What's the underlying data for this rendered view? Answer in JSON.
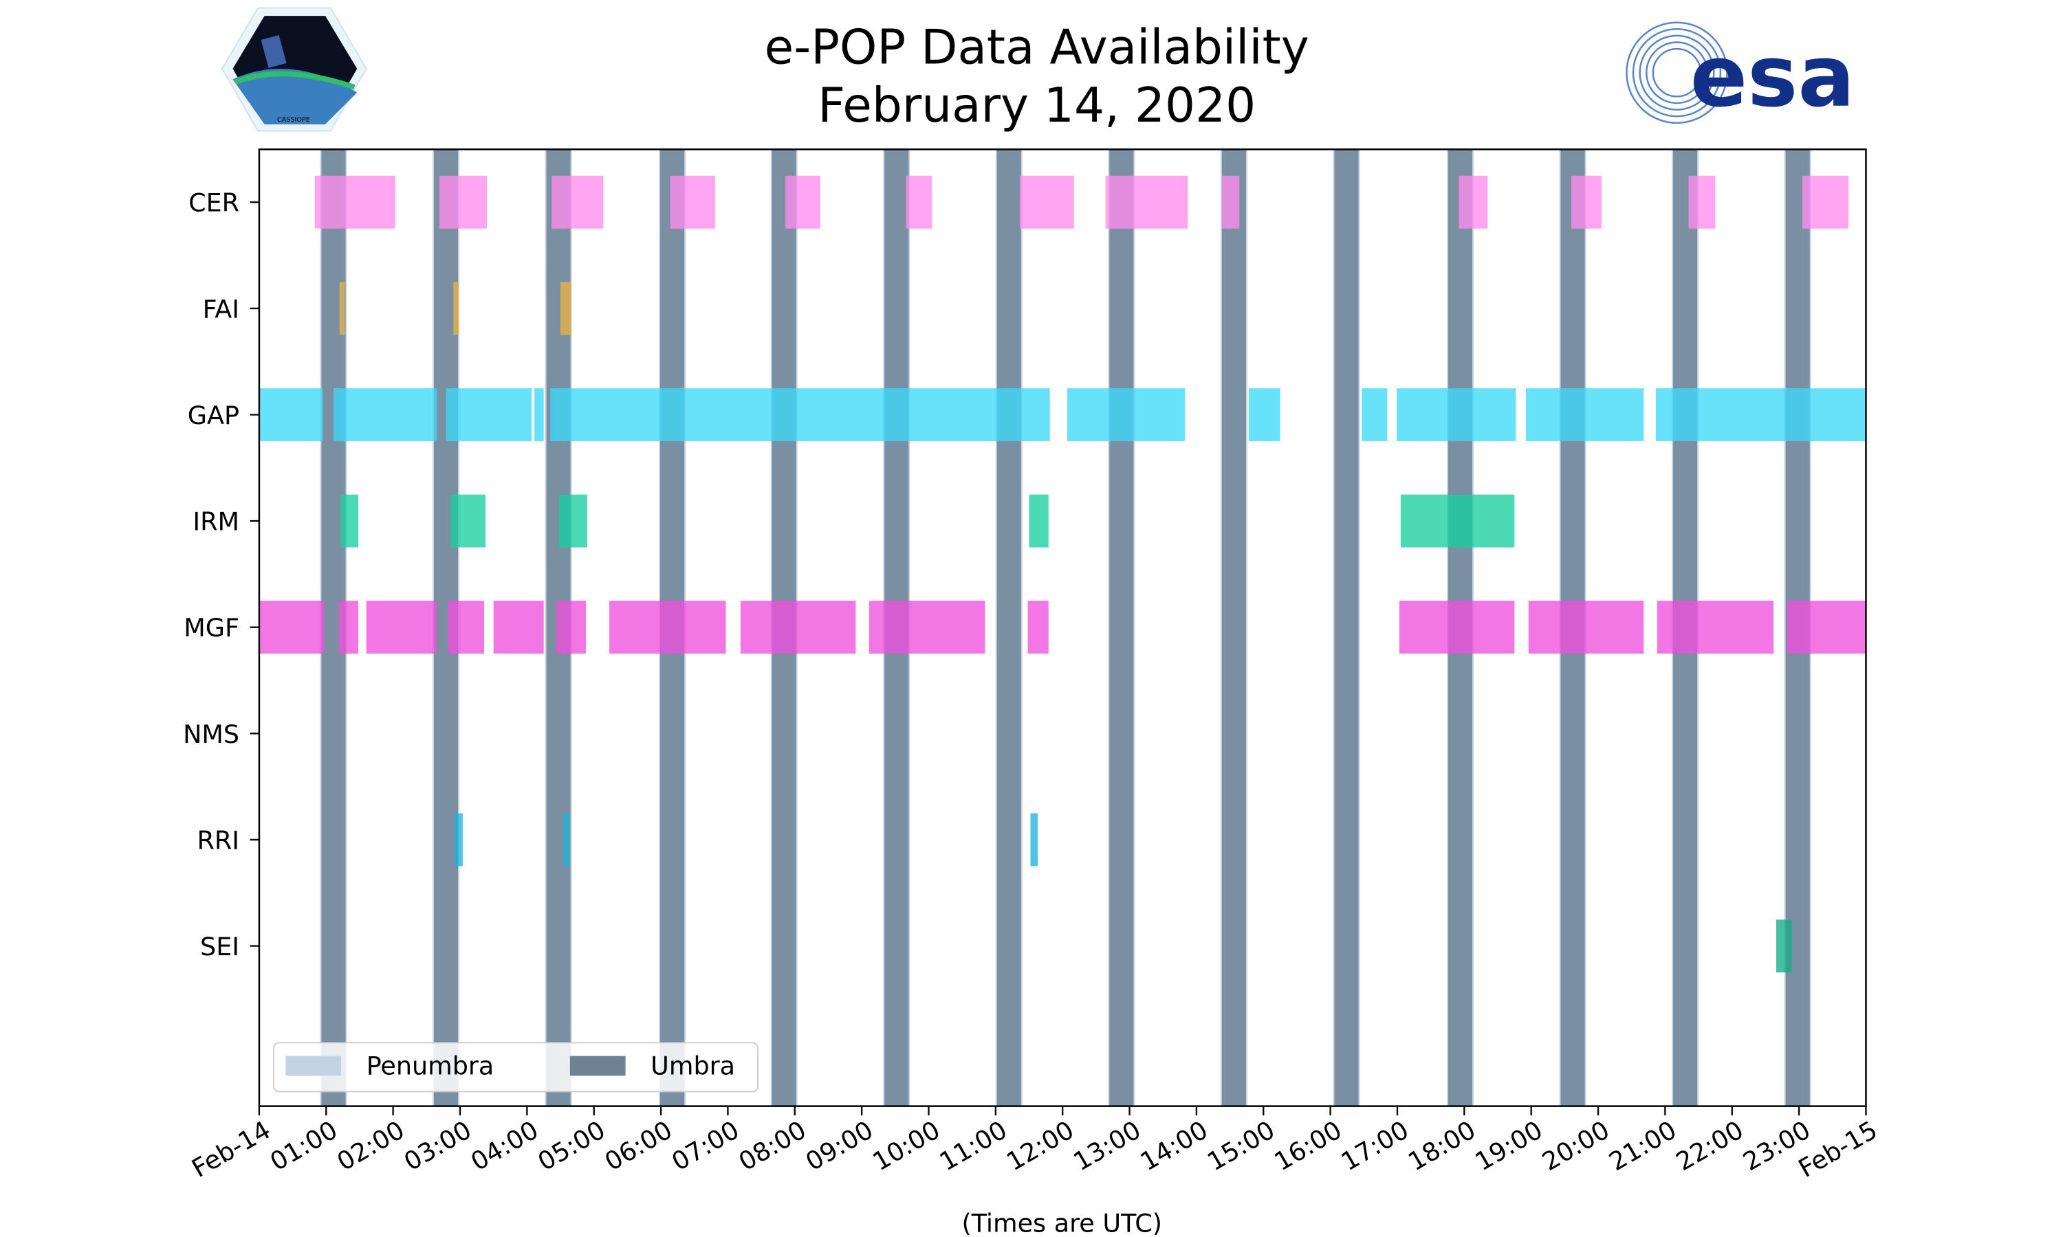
{
  "chart_data": {
    "type": "timeline",
    "title": "e-POP Data Availability",
    "subtitle": "February 14, 2020",
    "xlabel": "(Times are UTC)",
    "xlim_hours": [
      0,
      24
    ],
    "x_tick_labels": [
      "Feb-14",
      "01:00",
      "02:00",
      "03:00",
      "04:00",
      "05:00",
      "06:00",
      "07:00",
      "08:00",
      "09:00",
      "10:00",
      "11:00",
      "12:00",
      "13:00",
      "14:00",
      "15:00",
      "16:00",
      "17:00",
      "18:00",
      "19:00",
      "20:00",
      "21:00",
      "22:00",
      "23:00",
      "Feb-15"
    ],
    "instruments": [
      {
        "name": "CER",
        "color": "#ff8cee",
        "intervals": [
          [
            0.83,
            2.03
          ],
          [
            2.69,
            3.4
          ],
          [
            4.37,
            5.14
          ],
          [
            6.14,
            6.81
          ],
          [
            7.86,
            8.38
          ],
          [
            9.66,
            10.05
          ],
          [
            11.36,
            12.17
          ],
          [
            12.64,
            13.87
          ],
          [
            14.38,
            14.64
          ],
          [
            17.92,
            18.35
          ],
          [
            19.6,
            20.05
          ],
          [
            21.35,
            21.75
          ],
          [
            23.05,
            23.74
          ]
        ]
      },
      {
        "name": "FAI",
        "color": "#e8b445",
        "intervals": [
          [
            1.2,
            1.28
          ],
          [
            2.9,
            2.98
          ],
          [
            4.5,
            4.66
          ]
        ]
      },
      {
        "name": "GAP",
        "color": "#3dd8f8",
        "intervals": [
          [
            0,
            0.95
          ],
          [
            1.11,
            2.65
          ],
          [
            2.79,
            4.07
          ],
          [
            4.11,
            4.25
          ],
          [
            4.35,
            11.81
          ],
          [
            12.07,
            13.83
          ],
          [
            14.78,
            15.25
          ],
          [
            16.47,
            16.85
          ],
          [
            16.99,
            18.77
          ],
          [
            18.92,
            20.68
          ],
          [
            20.86,
            24
          ]
        ]
      },
      {
        "name": "IRM",
        "color": "#18cf9f",
        "intervals": [
          [
            1.22,
            1.48
          ],
          [
            2.86,
            3.38
          ],
          [
            4.48,
            4.9
          ],
          [
            11.5,
            11.79
          ],
          [
            17.05,
            18.75
          ]
        ]
      },
      {
        "name": "MGF",
        "color": "#ee4fdb",
        "intervals": [
          [
            0,
            0.97
          ],
          [
            1.19,
            1.48
          ],
          [
            1.6,
            2.65
          ],
          [
            2.82,
            3.36
          ],
          [
            3.5,
            4.25
          ],
          [
            4.44,
            4.88
          ],
          [
            5.23,
            6.97
          ],
          [
            7.19,
            8.91
          ],
          [
            9.11,
            10.84
          ],
          [
            11.48,
            11.79
          ],
          [
            17.03,
            18.75
          ],
          [
            18.96,
            20.68
          ],
          [
            20.88,
            22.62
          ],
          [
            22.82,
            24
          ]
        ]
      },
      {
        "name": "NMS",
        "color": "#888888",
        "intervals": []
      },
      {
        "name": "RRI",
        "color": "#1fb4dc",
        "intervals": [
          [
            2.92,
            3.04
          ],
          [
            4.54,
            4.64
          ],
          [
            11.52,
            11.63
          ]
        ]
      },
      {
        "name": "SEI",
        "color": "#14ad85",
        "intervals": [
          [
            22.66,
            22.89
          ]
        ]
      }
    ],
    "umbra": {
      "color": "#6e8296",
      "starts": [
        0.93,
        2.61,
        4.29,
        5.99,
        7.66,
        9.34,
        11.02,
        12.7,
        14.38,
        16.06,
        17.76,
        19.44,
        21.12,
        22.8
      ],
      "duration": 0.36
    },
    "legend": {
      "placement": "lower-left",
      "entries": [
        {
          "label": "Penumbra",
          "color": "#c4d3e3"
        },
        {
          "label": "Umbra",
          "color": "#6e8296"
        }
      ]
    }
  },
  "logos": {
    "left": "CASSIOPE",
    "right": "esa"
  }
}
